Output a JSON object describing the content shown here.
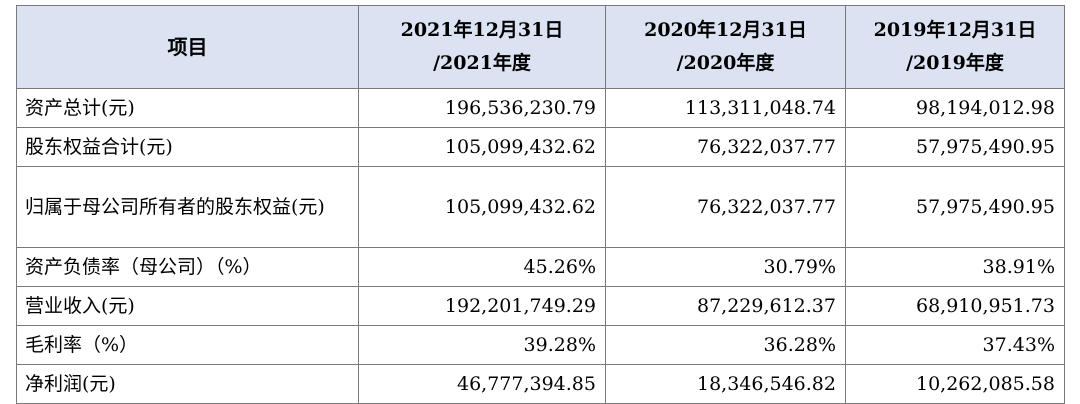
{
  "table": {
    "headers": [
      {
        "line1": "项目",
        "line2": ""
      },
      {
        "line1": "2021年12月31日",
        "line2": "/2021年度"
      },
      {
        "line1": "2020年12月31日",
        "line2": "/2020年度"
      },
      {
        "line1": "2019年12月31日",
        "line2": "/2019年度"
      }
    ],
    "rows": [
      {
        "label": "资产总计(元)",
        "values": [
          "196,536,230.79",
          "113,311,048.74",
          "98,194,012.98"
        ]
      },
      {
        "label": "股东权益合计(元)",
        "values": [
          "105,099,432.62",
          "76,322,037.77",
          "57,975,490.95"
        ]
      },
      {
        "label": "归属于母公司所有者的股东权益(元)",
        "values": [
          "105,099,432.62",
          "76,322,037.77",
          "57,975,490.95"
        ]
      },
      {
        "label": "资产负债率（母公司）（%）",
        "values": [
          "45.26%",
          "30.79%",
          "38.91%"
        ]
      },
      {
        "label": "营业收入(元)",
        "values": [
          "192,201,749.29",
          "87,229,612.37",
          "68,910,951.73"
        ]
      },
      {
        "label": "毛利率（%）",
        "values": [
          "39.28%",
          "36.28%",
          "37.43%"
        ]
      },
      {
        "label": "净利润(元)",
        "values": [
          "46,777,394.85",
          "18,346,546.82",
          "10,262,085.58"
        ]
      }
    ]
  }
}
